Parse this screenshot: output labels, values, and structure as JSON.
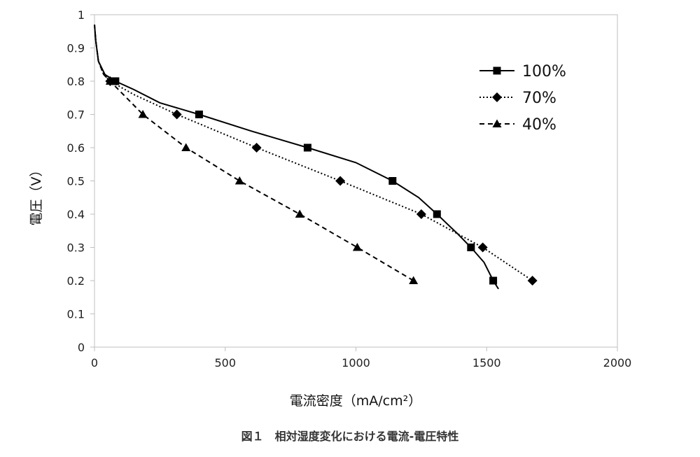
{
  "caption": "図１　相対湿度変化における電流-電圧特性",
  "chart_data": {
    "type": "line",
    "xlabel": "電流密度（mA/cm²）",
    "ylabel": "電圧（V）",
    "xlim": [
      0,
      2000
    ],
    "ylim": [
      0,
      1
    ],
    "x_ticks": [
      "0",
      "500",
      "1000",
      "1500",
      "2000"
    ],
    "y_ticks": [
      "0",
      "0.1",
      "0.2",
      "0.3",
      "0.4",
      "0.5",
      "0.6",
      "0.7",
      "0.8",
      "0.9",
      "1"
    ],
    "grid": false,
    "legend_position": "top-right",
    "series": [
      {
        "name": "100%",
        "marker": "square",
        "dash": "solid",
        "color": "#000000",
        "points": [
          [
            80,
            0.8
          ],
          [
            400,
            0.7
          ],
          [
            815,
            0.6
          ],
          [
            1140,
            0.5
          ],
          [
            1310,
            0.4
          ],
          [
            1440,
            0.3
          ],
          [
            1525,
            0.2
          ]
        ],
        "curve": [
          [
            0,
            0.97
          ],
          [
            5,
            0.92
          ],
          [
            15,
            0.86
          ],
          [
            40,
            0.82
          ],
          [
            80,
            0.8
          ],
          [
            150,
            0.775
          ],
          [
            250,
            0.735
          ],
          [
            400,
            0.7
          ],
          [
            600,
            0.65
          ],
          [
            815,
            0.6
          ],
          [
            1000,
            0.555
          ],
          [
            1140,
            0.5
          ],
          [
            1240,
            0.45
          ],
          [
            1310,
            0.4
          ],
          [
            1390,
            0.34
          ],
          [
            1440,
            0.3
          ],
          [
            1490,
            0.255
          ],
          [
            1525,
            0.2
          ],
          [
            1545,
            0.175
          ]
        ]
      },
      {
        "name": "70%",
        "marker": "diamond",
        "dash": "dotted",
        "color": "#000000",
        "points": [
          [
            60,
            0.8
          ],
          [
            315,
            0.7
          ],
          [
            620,
            0.6
          ],
          [
            940,
            0.5
          ],
          [
            1250,
            0.4
          ],
          [
            1485,
            0.3
          ],
          [
            1675,
            0.2
          ]
        ],
        "curve": [
          [
            0,
            0.97
          ],
          [
            5,
            0.92
          ],
          [
            15,
            0.86
          ],
          [
            35,
            0.82
          ],
          [
            60,
            0.8
          ],
          [
            150,
            0.76
          ],
          [
            315,
            0.7
          ],
          [
            620,
            0.6
          ],
          [
            940,
            0.5
          ],
          [
            1250,
            0.4
          ],
          [
            1485,
            0.3
          ],
          [
            1675,
            0.2
          ]
        ]
      },
      {
        "name": "40%",
        "marker": "triangle",
        "dash": "dashed",
        "color": "#000000",
        "points": [
          [
            60,
            0.8
          ],
          [
            185,
            0.7
          ],
          [
            350,
            0.6
          ],
          [
            555,
            0.5
          ],
          [
            785,
            0.4
          ],
          [
            1005,
            0.3
          ],
          [
            1220,
            0.2
          ]
        ],
        "curve": [
          [
            0,
            0.97
          ],
          [
            5,
            0.92
          ],
          [
            15,
            0.86
          ],
          [
            35,
            0.82
          ],
          [
            60,
            0.8
          ],
          [
            185,
            0.7
          ],
          [
            350,
            0.6
          ],
          [
            555,
            0.5
          ],
          [
            785,
            0.4
          ],
          [
            1005,
            0.3
          ],
          [
            1220,
            0.2
          ]
        ]
      }
    ]
  }
}
